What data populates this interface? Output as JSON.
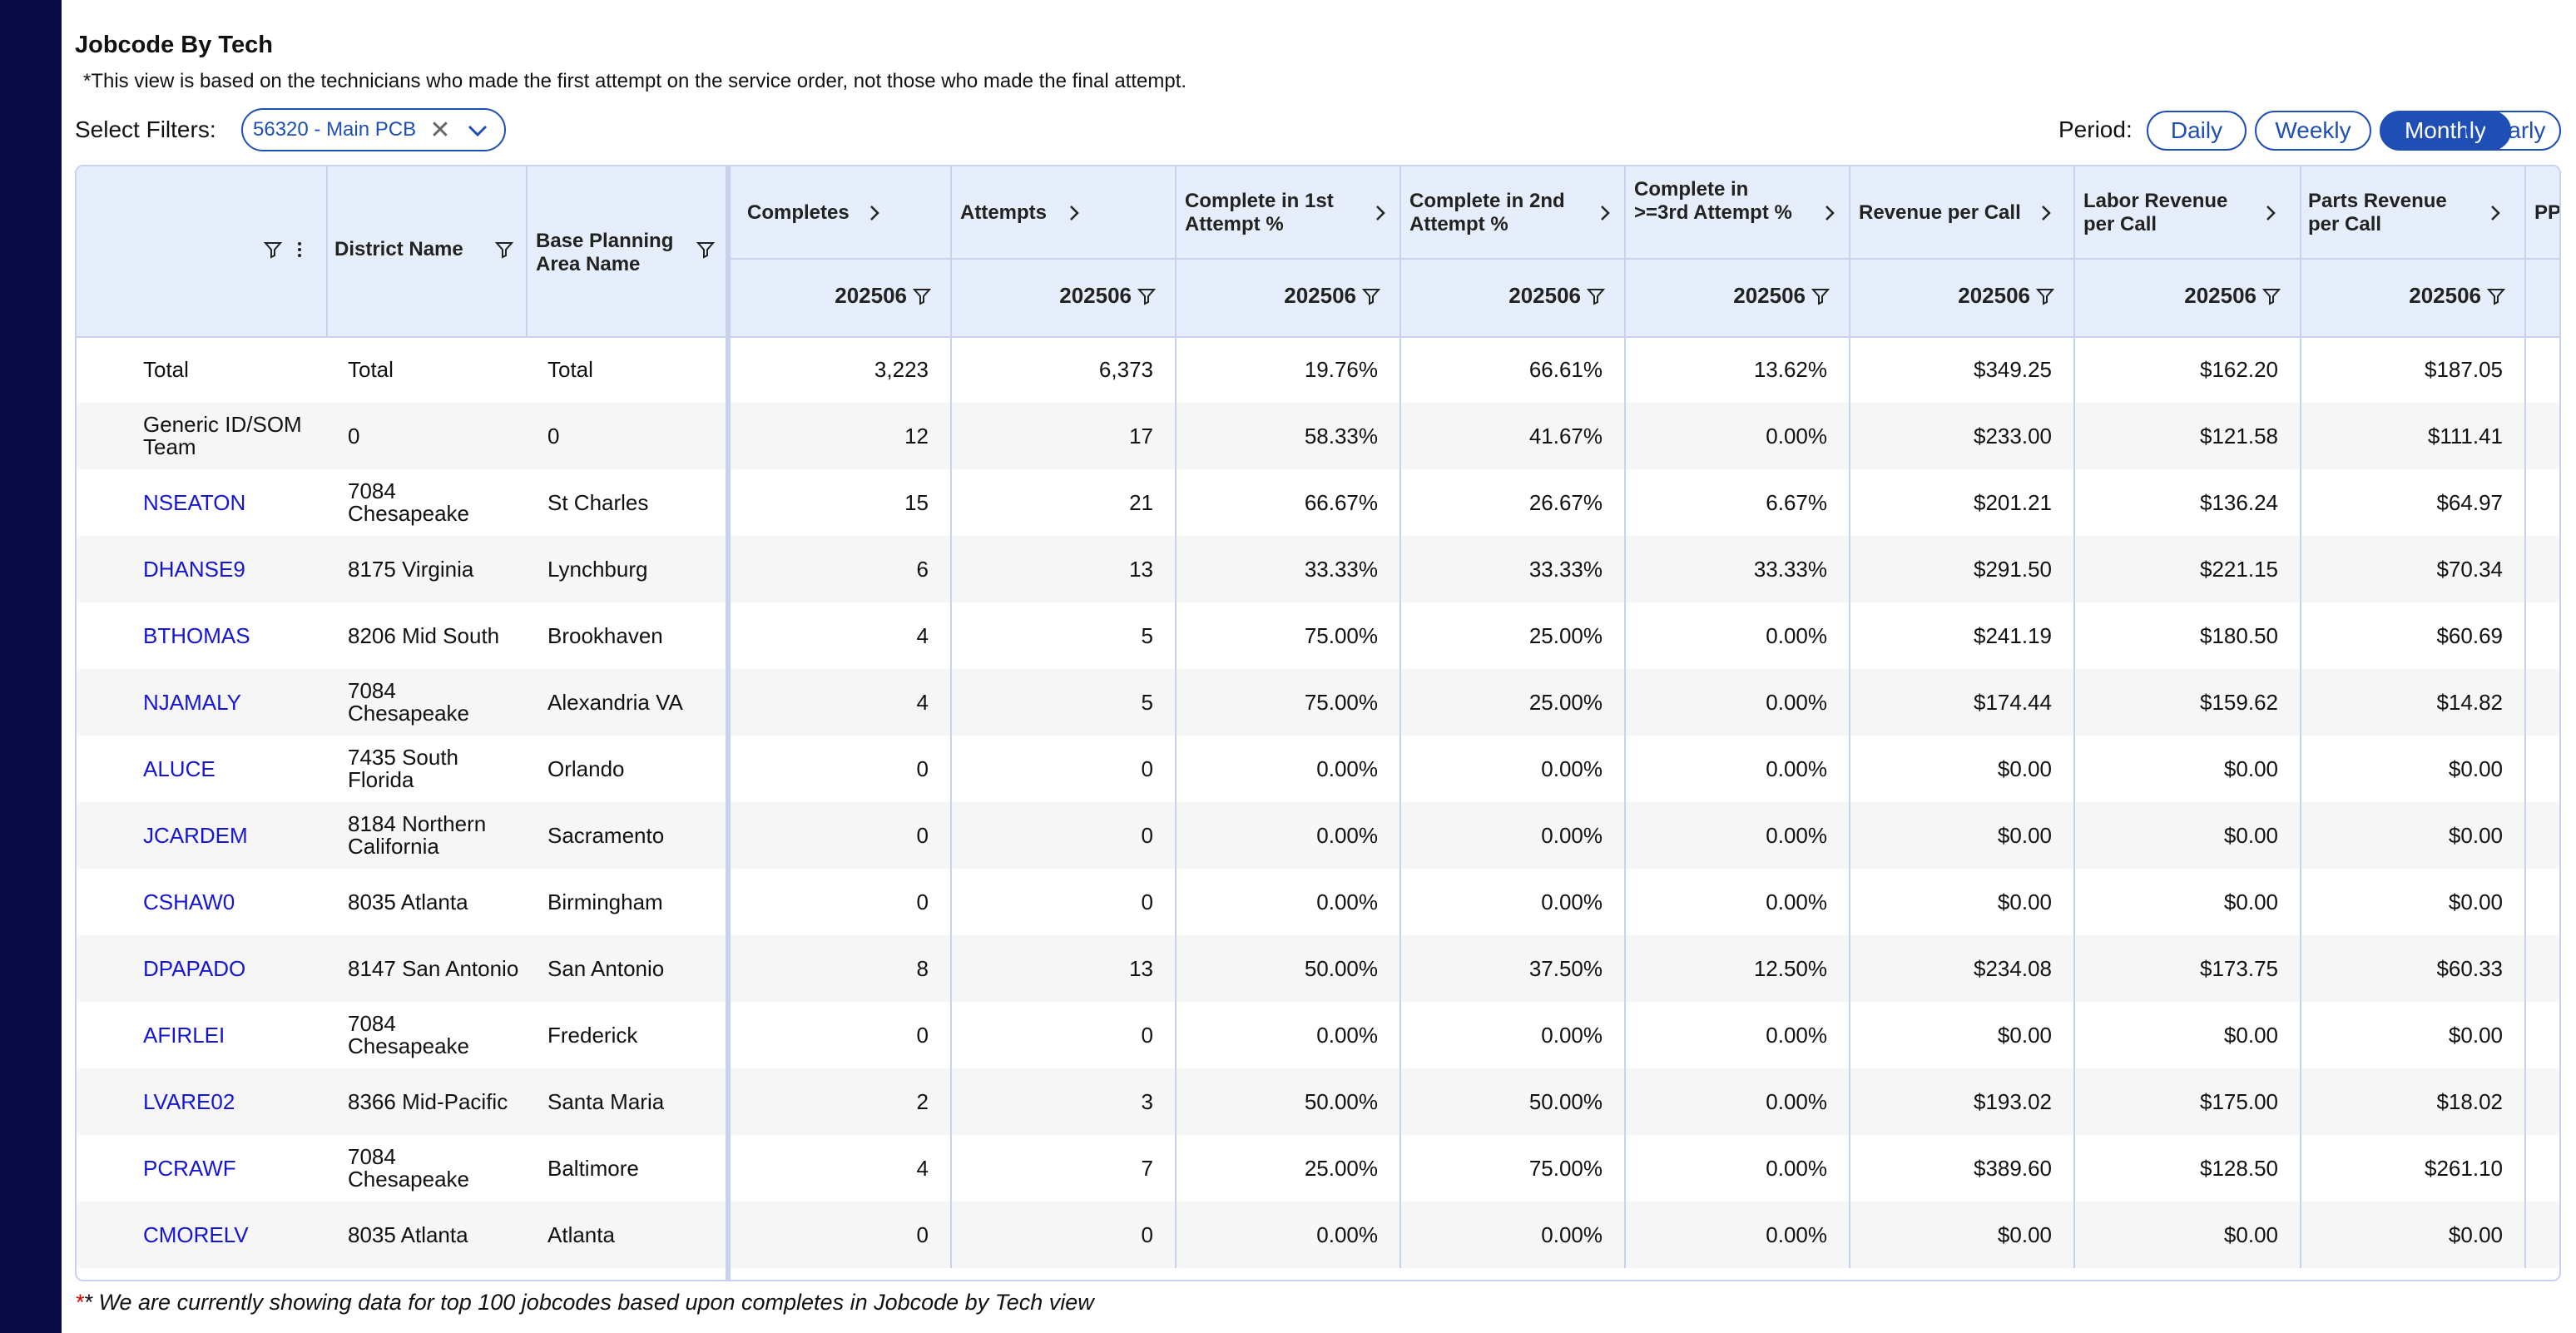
{
  "title": "Jobcode By Tech",
  "note": "*This view is based on the technicians who made the first attempt on the service order, not those who made the final attempt.",
  "filters": {
    "label": "Select Filters:",
    "selected": "56320 - Main PCB"
  },
  "period": {
    "label": "Period:",
    "options": [
      "Daily",
      "Weekly",
      "Monthly",
      "Yearly"
    ],
    "active": "Monthly"
  },
  "columns": {
    "district": "District Name",
    "bpa": "Base Planning Area Name",
    "completes": "Completes",
    "attempts": "Attempts",
    "c1": "Complete in 1st Attempt %",
    "c2": "Complete in 2nd Attempt %",
    "c3": "Complete in >=3rd Attempt %",
    "rev": "Revenue per Call",
    "labor": "Labor Revenue per Call",
    "parts": "Parts Revenue per Call",
    "pp": "PP",
    "month": "202506"
  },
  "rows": [
    {
      "tech": "Total",
      "district": "Total",
      "bpa": "Total",
      "completes": "3,223",
      "attempts": "6,373",
      "c1": "19.76%",
      "c2": "66.61%",
      "c3": "13.62%",
      "rev": "$349.25",
      "labor": "$162.20",
      "parts": "$187.05",
      "link": false
    },
    {
      "tech": "Generic ID/SOM Team",
      "district": "0",
      "bpa": "0",
      "completes": "12",
      "attempts": "17",
      "c1": "58.33%",
      "c2": "41.67%",
      "c3": "0.00%",
      "rev": "$233.00",
      "labor": "$121.58",
      "parts": "$111.41",
      "link": false
    },
    {
      "tech": "NSEATON",
      "district": "7084 Chesapeake",
      "bpa": "St Charles",
      "completes": "15",
      "attempts": "21",
      "c1": "66.67%",
      "c2": "26.67%",
      "c3": "6.67%",
      "rev": "$201.21",
      "labor": "$136.24",
      "parts": "$64.97",
      "link": true
    },
    {
      "tech": "DHANSE9",
      "district": "8175 Virginia",
      "bpa": "Lynchburg",
      "completes": "6",
      "attempts": "13",
      "c1": "33.33%",
      "c2": "33.33%",
      "c3": "33.33%",
      "rev": "$291.50",
      "labor": "$221.15",
      "parts": "$70.34",
      "link": true
    },
    {
      "tech": "BTHOMAS",
      "district": "8206 Mid South",
      "bpa": "Brookhaven",
      "completes": "4",
      "attempts": "5",
      "c1": "75.00%",
      "c2": "25.00%",
      "c3": "0.00%",
      "rev": "$241.19",
      "labor": "$180.50",
      "parts": "$60.69",
      "link": true
    },
    {
      "tech": "NJAMALY",
      "district": "7084 Chesapeake",
      "bpa": "Alexandria VA",
      "completes": "4",
      "attempts": "5",
      "c1": "75.00%",
      "c2": "25.00%",
      "c3": "0.00%",
      "rev": "$174.44",
      "labor": "$159.62",
      "parts": "$14.82",
      "link": true
    },
    {
      "tech": "ALUCE",
      "district": "7435 South Florida",
      "bpa": "Orlando",
      "completes": "0",
      "attempts": "0",
      "c1": "0.00%",
      "c2": "0.00%",
      "c3": "0.00%",
      "rev": "$0.00",
      "labor": "$0.00",
      "parts": "$0.00",
      "link": true
    },
    {
      "tech": "JCARDEM",
      "district": "8184 Northern California",
      "bpa": "Sacramento",
      "completes": "0",
      "attempts": "0",
      "c1": "0.00%",
      "c2": "0.00%",
      "c3": "0.00%",
      "rev": "$0.00",
      "labor": "$0.00",
      "parts": "$0.00",
      "link": true
    },
    {
      "tech": "CSHAW0",
      "district": "8035 Atlanta",
      "bpa": "Birmingham",
      "completes": "0",
      "attempts": "0",
      "c1": "0.00%",
      "c2": "0.00%",
      "c3": "0.00%",
      "rev": "$0.00",
      "labor": "$0.00",
      "parts": "$0.00",
      "link": true
    },
    {
      "tech": "DPAPADO",
      "district": "8147 San Antonio",
      "bpa": "San Antonio",
      "completes": "8",
      "attempts": "13",
      "c1": "50.00%",
      "c2": "37.50%",
      "c3": "12.50%",
      "rev": "$234.08",
      "labor": "$173.75",
      "parts": "$60.33",
      "link": true
    },
    {
      "tech": "AFIRLEI",
      "district": "7084 Chesapeake",
      "bpa": "Frederick",
      "completes": "0",
      "attempts": "0",
      "c1": "0.00%",
      "c2": "0.00%",
      "c3": "0.00%",
      "rev": "$0.00",
      "labor": "$0.00",
      "parts": "$0.00",
      "link": true
    },
    {
      "tech": "LVARE02",
      "district": "8366 Mid-Pacific",
      "bpa": "Santa Maria",
      "completes": "2",
      "attempts": "3",
      "c1": "50.00%",
      "c2": "50.00%",
      "c3": "0.00%",
      "rev": "$193.02",
      "labor": "$175.00",
      "parts": "$18.02",
      "link": true
    },
    {
      "tech": "PCRAWF",
      "district": "7084 Chesapeake",
      "bpa": "Baltimore",
      "completes": "4",
      "attempts": "7",
      "c1": "25.00%",
      "c2": "75.00%",
      "c3": "0.00%",
      "rev": "$389.60",
      "labor": "$128.50",
      "parts": "$261.10",
      "link": true
    },
    {
      "tech": "CMORELV",
      "district": "8035 Atlanta",
      "bpa": "Atlanta",
      "completes": "0",
      "attempts": "0",
      "c1": "0.00%",
      "c2": "0.00%",
      "c3": "0.00%",
      "rev": "$0.00",
      "labor": "$0.00",
      "parts": "$0.00",
      "link": true
    }
  ],
  "footer": {
    "star": "*",
    "text": "* We are currently showing data for top 100 jobcodes based upon completes in Jobcode by Tech view"
  }
}
